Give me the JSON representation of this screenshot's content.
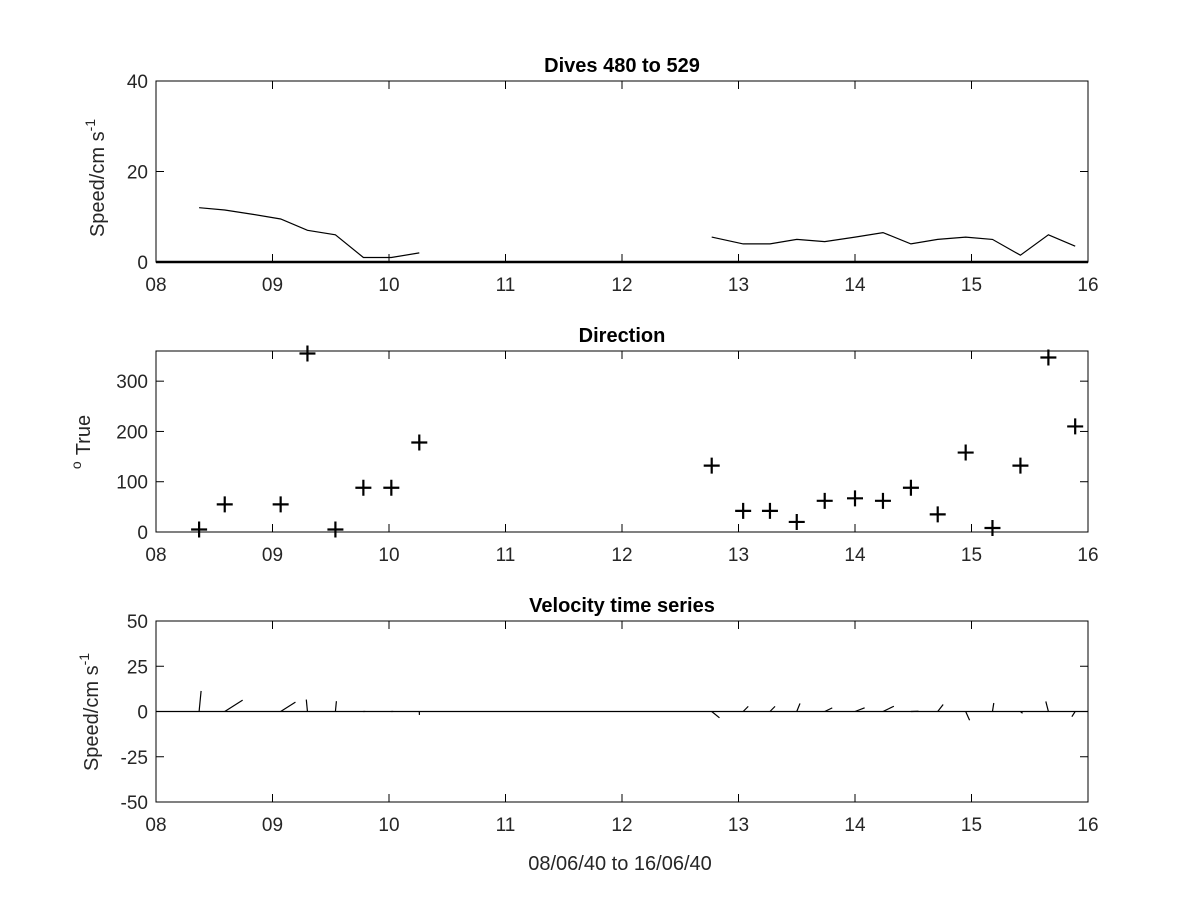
{
  "figure": {
    "background": "#ffffff",
    "line_color": "#000000"
  },
  "chart_data": [
    {
      "type": "line",
      "title": "Dives 480 to 529",
      "xlabel": "",
      "ylabel": "Speed/cm s",
      "ylabel_superscript": "-1",
      "xlim": [
        8,
        16
      ],
      "ylim": [
        0,
        40
      ],
      "xticks": [
        "08",
        "09",
        "10",
        "11",
        "12",
        "13",
        "14",
        "15",
        "16"
      ],
      "yticks": [
        "0",
        "20",
        "40"
      ],
      "grid": false,
      "series": [
        {
          "segments": [
            {
              "x": [
                8.37,
                8.59,
                8.84,
                9.07,
                9.3,
                9.54,
                9.78,
                10.02,
                10.26
              ],
              "y": [
                12,
                11.5,
                10.5,
                9.5,
                7,
                6,
                1,
                1,
                2
              ]
            },
            {
              "x": [
                12.77,
                13.04,
                13.27,
                13.5,
                13.74,
                14.0,
                14.24,
                14.48,
                14.71,
                14.95,
                15.18,
                15.42,
                15.66,
                15.89
              ],
              "y": [
                5.5,
                4,
                4,
                5,
                4.5,
                5.5,
                6.5,
                4,
                5,
                5.5,
                5,
                1.5,
                6,
                3.5
              ]
            }
          ]
        }
      ],
      "baseline_y": 0
    },
    {
      "type": "scatter",
      "title": "Direction",
      "xlabel": "",
      "ylabel": "True",
      "ylabel_superscript": "o",
      "xlim": [
        8,
        16
      ],
      "ylim": [
        0,
        360
      ],
      "xticks": [
        "08",
        "09",
        "10",
        "11",
        "12",
        "13",
        "14",
        "15",
        "16"
      ],
      "yticks": [
        "0",
        "100",
        "200",
        "300"
      ],
      "grid": false,
      "marker": "+",
      "points": {
        "x": [
          8.37,
          8.59,
          9.07,
          9.3,
          9.54,
          9.78,
          10.02,
          10.26,
          12.77,
          13.04,
          13.27,
          13.5,
          13.74,
          14.0,
          14.24,
          14.48,
          14.71,
          14.95,
          15.18,
          15.42,
          15.66,
          15.89
        ],
        "y": [
          5,
          55,
          55,
          355,
          5,
          88,
          88,
          178,
          132,
          42,
          42,
          20,
          62,
          67,
          62,
          88,
          35,
          158,
          8,
          132,
          347,
          210
        ]
      }
    },
    {
      "type": "quiver",
      "title": "Velocity time series",
      "xlabel": "08/06/40 to 16/06/40",
      "ylabel": "Speed/cm s",
      "ylabel_superscript": "-1",
      "xlim": [
        8,
        16
      ],
      "ylim": [
        -50,
        50
      ],
      "xticks": [
        "08",
        "09",
        "10",
        "11",
        "12",
        "13",
        "14",
        "15",
        "16"
      ],
      "yticks": [
        "-50",
        "-25",
        "0",
        "25",
        "50"
      ],
      "grid": false,
      "baseline_y": 0,
      "vectors": {
        "x": [
          8.37,
          8.59,
          9.07,
          9.3,
          9.54,
          9.78,
          10.02,
          10.26,
          12.77,
          13.04,
          13.27,
          13.5,
          13.74,
          14.0,
          14.24,
          14.48,
          14.71,
          14.95,
          15.18,
          15.42,
          15.66,
          15.89
        ],
        "speed": [
          12,
          11.5,
          9.5,
          7,
          6,
          1,
          1,
          2,
          5.5,
          4,
          4,
          5,
          4.5,
          5.5,
          6.5,
          4,
          5,
          5.5,
          5,
          1.5,
          6,
          3.5
        ],
        "direction": [
          5,
          55,
          55,
          355,
          5,
          88,
          88,
          178,
          132,
          42,
          42,
          20,
          62,
          67,
          62,
          88,
          35,
          158,
          8,
          132,
          347,
          210
        ]
      }
    }
  ]
}
